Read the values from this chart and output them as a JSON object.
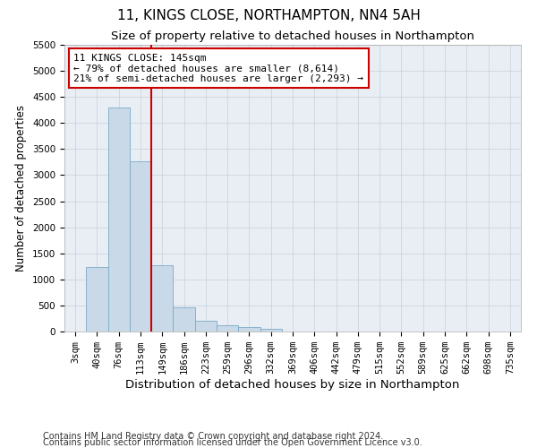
{
  "title": "11, KINGS CLOSE, NORTHAMPTON, NN4 5AH",
  "subtitle": "Size of property relative to detached houses in Northampton",
  "xlabel": "Distribution of detached houses by size in Northampton",
  "ylabel": "Number of detached properties",
  "footer_line1": "Contains HM Land Registry data © Crown copyright and database right 2024.",
  "footer_line2": "Contains public sector information licensed under the Open Government Licence v3.0.",
  "bar_labels": [
    "3sqm",
    "40sqm",
    "76sqm",
    "113sqm",
    "149sqm",
    "186sqm",
    "223sqm",
    "259sqm",
    "296sqm",
    "332sqm",
    "369sqm",
    "406sqm",
    "442sqm",
    "479sqm",
    "515sqm",
    "552sqm",
    "589sqm",
    "625sqm",
    "662sqm",
    "698sqm",
    "735sqm"
  ],
  "bar_values": [
    0,
    1230,
    4300,
    3270,
    1280,
    470,
    200,
    120,
    80,
    60,
    0,
    0,
    0,
    0,
    0,
    0,
    0,
    0,
    0,
    0,
    0
  ],
  "bar_color": "#c9d9e8",
  "bar_edgecolor": "#7aaac8",
  "vline_x_index": 4,
  "vline_color": "#cc0000",
  "annotation_text": "11 KINGS CLOSE: 145sqm\n← 79% of detached houses are smaller (8,614)\n21% of semi-detached houses are larger (2,293) →",
  "annotation_box_edgecolor": "#cc0000",
  "annotation_box_facecolor": "#ffffff",
  "ylim": [
    0,
    5500
  ],
  "yticks": [
    0,
    500,
    1000,
    1500,
    2000,
    2500,
    3000,
    3500,
    4000,
    4500,
    5000,
    5500
  ],
  "background_color": "#ffffff",
  "grid_color": "#c8d0d8",
  "title_fontsize": 11,
  "subtitle_fontsize": 9.5,
  "xlabel_fontsize": 9.5,
  "ylabel_fontsize": 8.5,
  "tick_fontsize": 7.5,
  "footer_fontsize": 7,
  "annot_fontsize": 8
}
